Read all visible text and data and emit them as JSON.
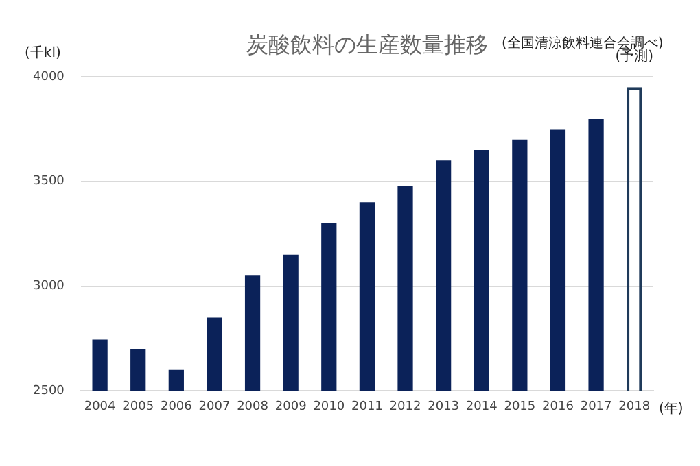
{
  "chart_data": {
    "type": "bar",
    "title": "炭酸飲料の生産数量推移",
    "ylabel": "(千kl)",
    "xlabel": "(年)",
    "annotations": [
      "(全国清涼飲料連合会調べ)",
      {
        "text": "(予測)",
        "x": "2018",
        "y": 3950
      }
    ],
    "categories": [
      "2004",
      "2005",
      "2006",
      "2007",
      "2008",
      "2009",
      "2010",
      "2011",
      "2012",
      "2013",
      "2014",
      "2015",
      "2016",
      "2017",
      "2018"
    ],
    "values": [
      2745,
      2700,
      2600,
      2850,
      3050,
      3150,
      3300,
      3400,
      3480,
      3600,
      3650,
      3700,
      3750,
      3800,
      3950
    ],
    "color": "#0b2259",
    "colors": [
      "#0b2259",
      "#0b2259",
      "#0b2259",
      "#0b2259",
      "#0b2259",
      "#0b2259",
      "#0b2259",
      "#0b2259",
      "#0b2259",
      "#0b2259",
      "#0b2259",
      "#0b2259",
      "#0b2259",
      "#0b2259",
      "#1f3a5a"
    ],
    "ylim": [
      2500,
      4000
    ],
    "yticks": [
      2500,
      3000,
      3500,
      4000
    ],
    "grid": "y",
    "legend": false
  }
}
